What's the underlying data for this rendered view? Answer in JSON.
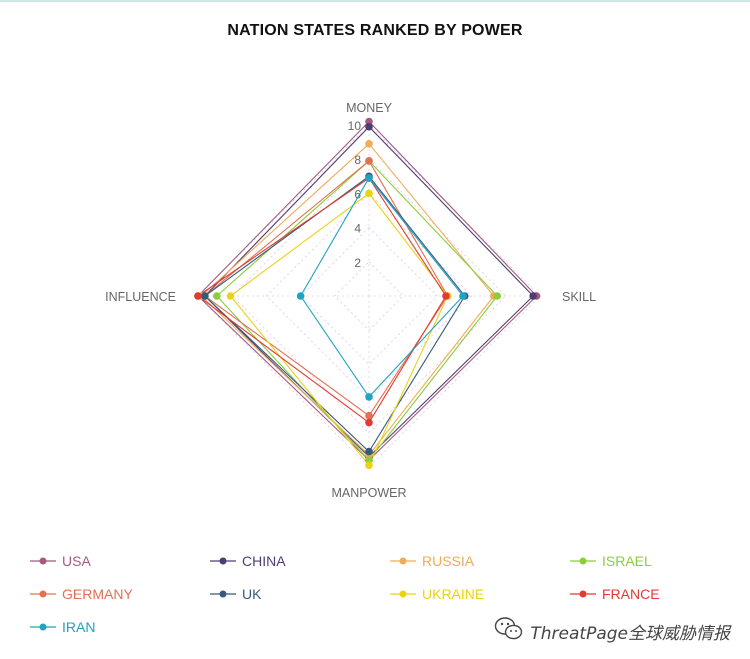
{
  "chart_data": {
    "type": "radar",
    "title": "NATION STATES RANKED BY POWER",
    "axes": [
      "MONEY",
      "SKILL",
      "MANPOWER",
      "INFLUENCE"
    ],
    "rmax": 10,
    "ticks": [
      "2",
      "4",
      "6",
      "8",
      "10"
    ],
    "tick_values": [
      2,
      4,
      6,
      8,
      10
    ],
    "series": [
      {
        "name": "USA",
        "color": "#a25b7f",
        "values": [
          10.2,
          9.8,
          9.6,
          10
        ]
      },
      {
        "name": "CHINA",
        "color": "#4f3d72",
        "values": [
          9.9,
          9.6,
          9.4,
          9.6
        ]
      },
      {
        "name": "RUSSIA",
        "color": "#f0ac58",
        "values": [
          8.9,
          7.3,
          9.3,
          9.8
        ]
      },
      {
        "name": "ISRAEL",
        "color": "#8ccd3c",
        "values": [
          7.9,
          7.5,
          9.6,
          8.9
        ]
      },
      {
        "name": "GERMANY",
        "color": "#e27052",
        "values": [
          7.9,
          4.6,
          7.0,
          9.6
        ]
      },
      {
        "name": "UK",
        "color": "#355b7c",
        "values": [
          7.0,
          5.6,
          9.1,
          9.6
        ]
      },
      {
        "name": "UKRAINE",
        "color": "#ebd214",
        "values": [
          6.0,
          4.6,
          9.9,
          8.1
        ]
      },
      {
        "name": "FRANCE",
        "color": "#e23b34",
        "values": [
          6.9,
          4.5,
          7.4,
          10
        ]
      },
      {
        "name": "IRAN",
        "color": "#20a3bf",
        "values": [
          6.9,
          5.5,
          5.9,
          4.0
        ]
      }
    ]
  },
  "watermark": {
    "text": "ThreatPage全球威胁情报",
    "icon": "wechat-icon"
  }
}
